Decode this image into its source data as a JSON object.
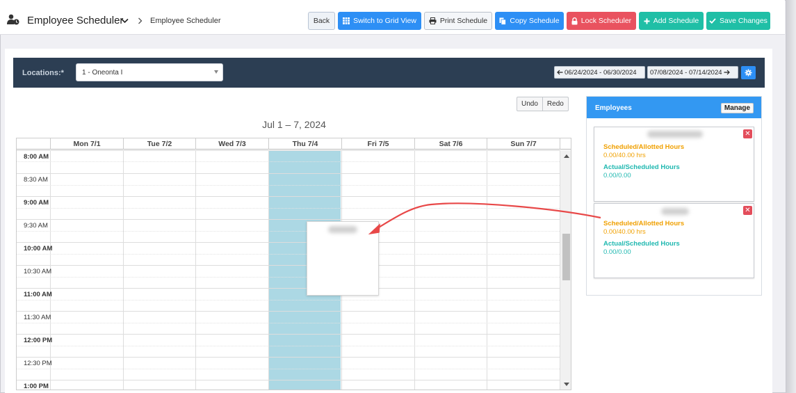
{
  "header": {
    "title": "Employee Scheduler",
    "breadcrumb": "Employee Scheduler",
    "buttons": {
      "back": "Back",
      "grid": "Switch to Grid View",
      "print": "Print Schedule",
      "copy": "Copy Schedule",
      "lock": "Lock Scheduler",
      "add": "Add Schedule",
      "save": "Save Changes"
    }
  },
  "locations": {
    "label": "Locations:*",
    "selected": "1 - Oneonta I",
    "prev_week": "06/24/2024 - 06/30/2024",
    "next_week": "07/08/2024 - 07/14/2024"
  },
  "calendar": {
    "undo": "Undo",
    "redo": "Redo",
    "title": "Jul 1 – 7, 2024",
    "days": [
      "Mon 7/1",
      "Tue 7/2",
      "Wed 7/3",
      "Thu 7/4",
      "Fri 7/5",
      "Sat 7/6",
      "Sun 7/7"
    ],
    "times": [
      "8:00 AM",
      "8:30 AM",
      "9:00 AM",
      "9:30 AM",
      "10:00 AM",
      "10:30 AM",
      "11:00 AM",
      "11:30 AM",
      "12:00 PM",
      "12:30 PM",
      "1:00 PM"
    ]
  },
  "employees": {
    "title": "Employees",
    "manage": "Manage",
    "cards": [
      {
        "sched_label": "Scheduled/Allotted Hours",
        "sched_value": "0.00/40.00 hrs",
        "actual_label": "Actual/Scheduled Hours",
        "actual_value": "0.00/0.00"
      },
      {
        "sched_label": "Scheduled/Allotted Hours",
        "sched_value": "0.00/40.00 hrs",
        "actual_label": "Actual/Scheduled Hours",
        "actual_value": "0.00/0.00"
      }
    ]
  },
  "colors": {
    "primary": "#2d8ff5",
    "danger": "#e9525f",
    "success": "#1fbfa6",
    "nav_dark": "#2c3e53",
    "highlight_day": "#acd8e4",
    "annotation_arrow": "#e84848"
  }
}
